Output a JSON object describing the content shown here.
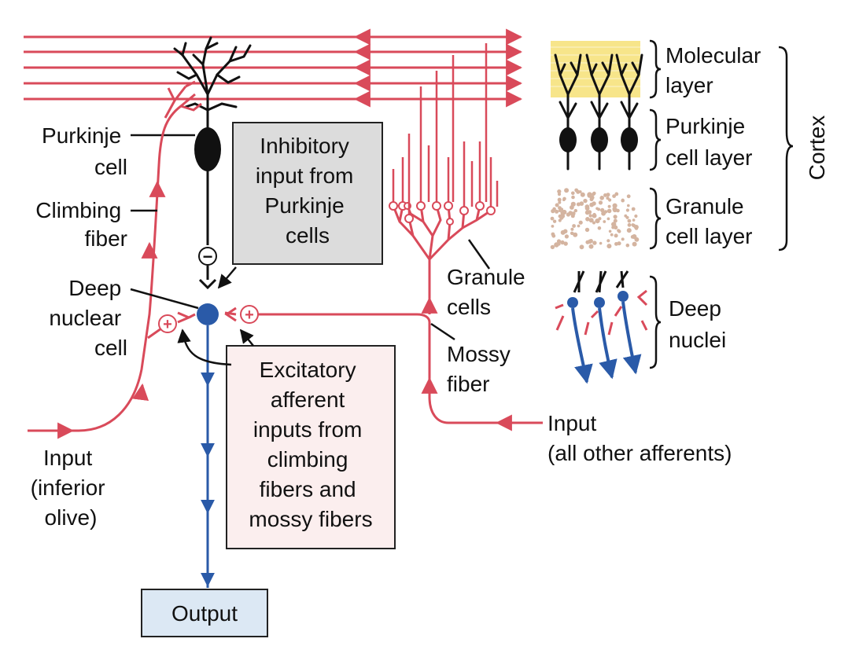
{
  "labels": {
    "purkinje_cell": [
      "Purkinje",
      "cell"
    ],
    "climbing_fiber": [
      "Climbing",
      "fiber"
    ],
    "deep_nuclear_cell": [
      "Deep",
      "nuclear",
      "cell"
    ],
    "input_inferior_olive": [
      "Input",
      "(inferior",
      "olive)"
    ],
    "inhibitory_box": [
      "Inhibitory",
      "input from",
      "Purkinje",
      "cells"
    ],
    "excitatory_box": [
      "Excitatory",
      "afferent",
      "inputs from",
      "climbing",
      "fibers and",
      "mossy fibers"
    ],
    "output": "Output",
    "granule_cells": [
      "Granule",
      "cells"
    ],
    "mossy_fiber": [
      "Mossy",
      "fiber"
    ],
    "input_other": [
      "Input",
      "(all other afferents)"
    ],
    "molecular_layer": [
      "Molecular",
      "layer"
    ],
    "purkinje_cell_layer": [
      "Purkinje",
      "cell layer"
    ],
    "granule_cell_layer": [
      "Granule",
      "cell layer"
    ],
    "deep_nuclei": [
      "Deep",
      "nuclei"
    ],
    "cortex": "Cortex",
    "inhibit_sign": "−",
    "excite_sign": "+"
  },
  "colors": {
    "excitatory_fiber": "#d94a5a",
    "output_fiber": "#2a5aa8",
    "purkinje": "#111111",
    "molecular_layer_fill": "#f7e58a",
    "granule_dots": "#d4b4a0",
    "inhibitory_box": "#dcdcdc",
    "excitatory_box": "#fbeeee",
    "output_box": "#dce8f4"
  }
}
